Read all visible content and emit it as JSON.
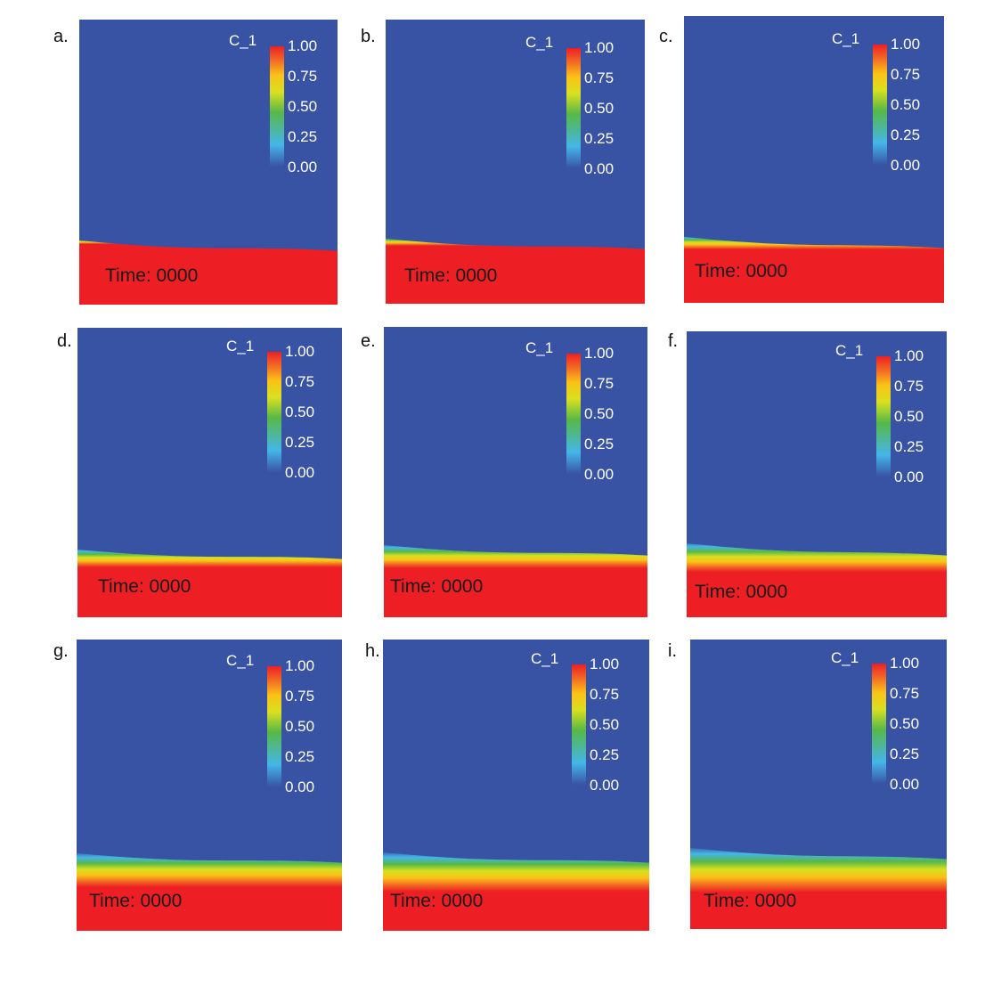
{
  "panels": [
    {
      "label": "a.",
      "variable": "C_1",
      "time": "Time: 0000",
      "ticks": [
        "1.00",
        "0.75",
        "0.50",
        "0.25",
        "0.00"
      ]
    },
    {
      "label": "b.",
      "variable": "C_1",
      "time": "Time: 0000",
      "ticks": [
        "1.00",
        "0.75",
        "0.50",
        "0.25",
        "0.00"
      ]
    },
    {
      "label": "c.",
      "variable": "C_1",
      "time": "Time: 0000",
      "ticks": [
        "1.00",
        "0.75",
        "0.50",
        "0.25",
        "0.00"
      ]
    },
    {
      "label": "d.",
      "variable": "C_1",
      "time": "Time: 0000",
      "ticks": [
        "1.00",
        "0.75",
        "0.50",
        "0.25",
        "0.00"
      ]
    },
    {
      "label": "e.",
      "variable": "C_1",
      "time": "Time: 0000",
      "ticks": [
        "1.00",
        "0.75",
        "0.50",
        "0.25",
        "0.00"
      ]
    },
    {
      "label": "f.",
      "variable": "C_1",
      "time": "Time: 0000",
      "ticks": [
        "1.00",
        "0.75",
        "0.50",
        "0.25",
        "0.00"
      ]
    },
    {
      "label": "g.",
      "variable": "C_1",
      "time": "Time: 0000",
      "ticks": [
        "1.00",
        "0.75",
        "0.50",
        "0.25",
        "0.00"
      ]
    },
    {
      "label": "h.",
      "variable": "C_1",
      "time": "Time: 0000",
      "ticks": [
        "1.00",
        "0.75",
        "0.50",
        "0.25",
        "0.00"
      ]
    },
    {
      "label": "i.",
      "variable": "C_1",
      "time": "Time: 0000",
      "ticks": [
        "1.00",
        "0.75",
        "0.50",
        "0.25",
        "0.00"
      ]
    }
  ],
  "colors": {
    "background_phase": "#3953a4",
    "dense_phase": "#ed1f24",
    "colormap": [
      "#3953a4",
      "#44b6e8",
      "#57b847",
      "#d8e021",
      "#fbc216",
      "#f36c24",
      "#ed1f24"
    ]
  }
}
